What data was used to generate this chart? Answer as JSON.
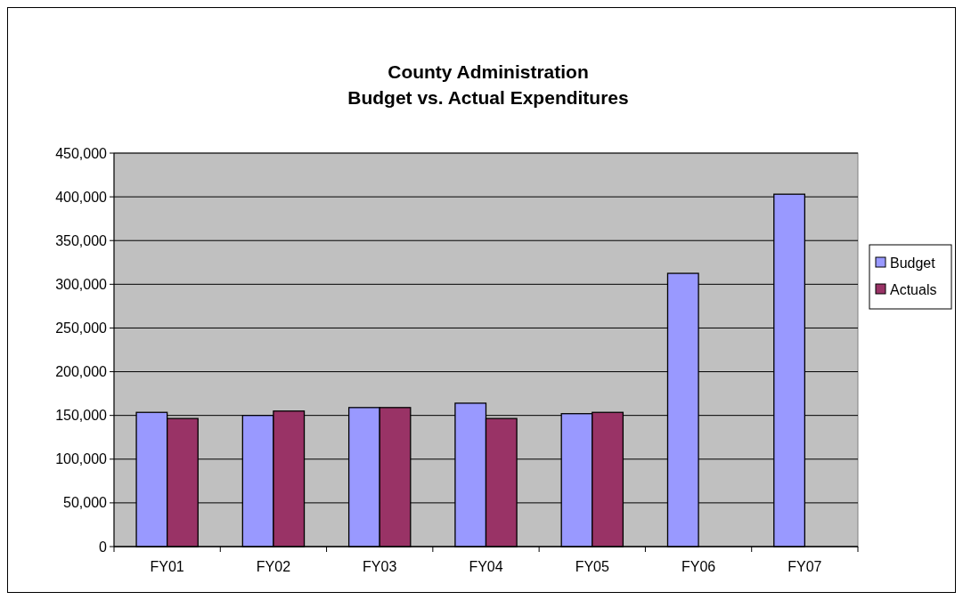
{
  "chart_data": {
    "type": "bar",
    "title": "County Administration\nBudget vs. Actual Expenditures",
    "categories": [
      "FY01",
      "FY02",
      "FY03",
      "FY04",
      "FY05",
      "FY06",
      "FY07"
    ],
    "series": [
      {
        "name": "Budget",
        "color": "#9999ff",
        "values": [
          153500,
          150000,
          159000,
          164000,
          152000,
          312500,
          403000
        ]
      },
      {
        "name": "Actuals",
        "color": "#993366",
        "values": [
          146500,
          155000,
          159000,
          146500,
          153500,
          null,
          null
        ]
      }
    ],
    "ylim": [
      0,
      450000
    ],
    "yticks": [
      {
        "value": 0,
        "label": "0"
      },
      {
        "value": 50000,
        "label": "50,000"
      },
      {
        "value": 100000,
        "label": "100,000"
      },
      {
        "value": 150000,
        "label": "150,000"
      },
      {
        "value": 200000,
        "label": "200,000"
      },
      {
        "value": 250000,
        "label": "250,000"
      },
      {
        "value": 300000,
        "label": "300,000"
      },
      {
        "value": 350000,
        "label": "350,000"
      },
      {
        "value": 400000,
        "label": "400,000"
      },
      {
        "value": 450000,
        "label": "450,000"
      }
    ],
    "grid": "y",
    "legend": "right"
  }
}
